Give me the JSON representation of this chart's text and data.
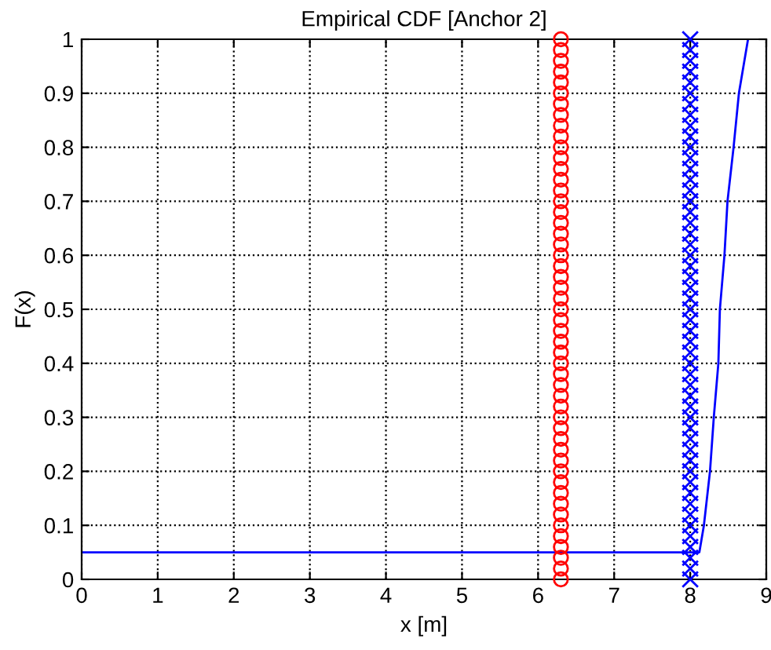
{
  "chart_data": {
    "type": "scatter",
    "title": "Empirical CDF [Anchor 2]",
    "xlabel": "x [m]",
    "ylabel": "F(x)",
    "xlim": [
      0,
      9
    ],
    "ylim": [
      0,
      1
    ],
    "xticks": [
      0,
      1,
      2,
      3,
      4,
      5,
      6,
      7,
      8,
      9
    ],
    "yticks": [
      0,
      0.1,
      0.2,
      0.3,
      0.4,
      0.5,
      0.6,
      0.7,
      0.8,
      0.9,
      1
    ],
    "grid": true,
    "series": [
      {
        "type": "line",
        "color": "#0000ff",
        "marker": "none",
        "line_style": "solid",
        "x": [
          0,
          8.12,
          8.18,
          8.26,
          8.31,
          8.37,
          8.39,
          8.45,
          8.49,
          8.57,
          8.64,
          8.76
        ],
        "values": [
          0.05,
          0.05,
          0.1,
          0.2,
          0.3,
          0.4,
          0.5,
          0.6,
          0.7,
          0.8,
          0.9,
          1
        ]
      },
      {
        "color": "#ff0000",
        "marker": "circle",
        "x": [
          6.3,
          6.3,
          6.3,
          6.3,
          6.3,
          6.3,
          6.3,
          6.3,
          6.3,
          6.3,
          6.3,
          6.3,
          6.3,
          6.3,
          6.3,
          6.3,
          6.3,
          6.3,
          6.3,
          6.3,
          6.3,
          6.3,
          6.3,
          6.3,
          6.3,
          6.3,
          6.3,
          6.3,
          6.3,
          6.3,
          6.3,
          6.3,
          6.3,
          6.3,
          6.3,
          6.3,
          6.3,
          6.3,
          6.3,
          6.3,
          6.3,
          6.3,
          6.3,
          6.3,
          6.3,
          6.3,
          6.3,
          6.3,
          6.3,
          6.3,
          6.3
        ],
        "values": [
          0,
          0.02,
          0.04,
          0.06,
          0.08,
          0.1,
          0.12,
          0.14,
          0.16,
          0.18,
          0.2,
          0.22,
          0.24,
          0.26,
          0.28,
          0.3,
          0.32,
          0.34,
          0.36,
          0.38,
          0.4,
          0.42,
          0.44,
          0.46,
          0.48,
          0.5,
          0.52,
          0.54,
          0.56,
          0.58,
          0.6,
          0.62,
          0.64,
          0.66,
          0.68,
          0.7,
          0.72,
          0.74,
          0.76,
          0.78,
          0.8,
          0.82,
          0.84,
          0.86,
          0.88,
          0.9,
          0.92,
          0.94,
          0.96,
          0.98,
          1
        ]
      },
      {
        "color": "#0000ff",
        "marker": "cross",
        "x": [
          8,
          8,
          8,
          8,
          8,
          8,
          8,
          8,
          8,
          8,
          8,
          8,
          8,
          8,
          8,
          8,
          8,
          8,
          8,
          8,
          8,
          8,
          8,
          8,
          8,
          8,
          8,
          8,
          8,
          8,
          8,
          8,
          8,
          8,
          8,
          8,
          8,
          8,
          8,
          8,
          8,
          8,
          8,
          8,
          8,
          8,
          8,
          8,
          8,
          8,
          8
        ],
        "values": [
          0,
          0.02,
          0.04,
          0.06,
          0.08,
          0.1,
          0.12,
          0.14,
          0.16,
          0.18,
          0.2,
          0.22,
          0.24,
          0.26,
          0.28,
          0.3,
          0.32,
          0.34,
          0.36,
          0.38,
          0.4,
          0.42,
          0.44,
          0.46,
          0.48,
          0.5,
          0.52,
          0.54,
          0.56,
          0.58,
          0.6,
          0.62,
          0.64,
          0.66,
          0.68,
          0.7,
          0.72,
          0.74,
          0.76,
          0.78,
          0.8,
          0.82,
          0.84,
          0.86,
          0.88,
          0.9,
          0.92,
          0.94,
          0.96,
          0.98,
          1
        ]
      }
    ]
  }
}
